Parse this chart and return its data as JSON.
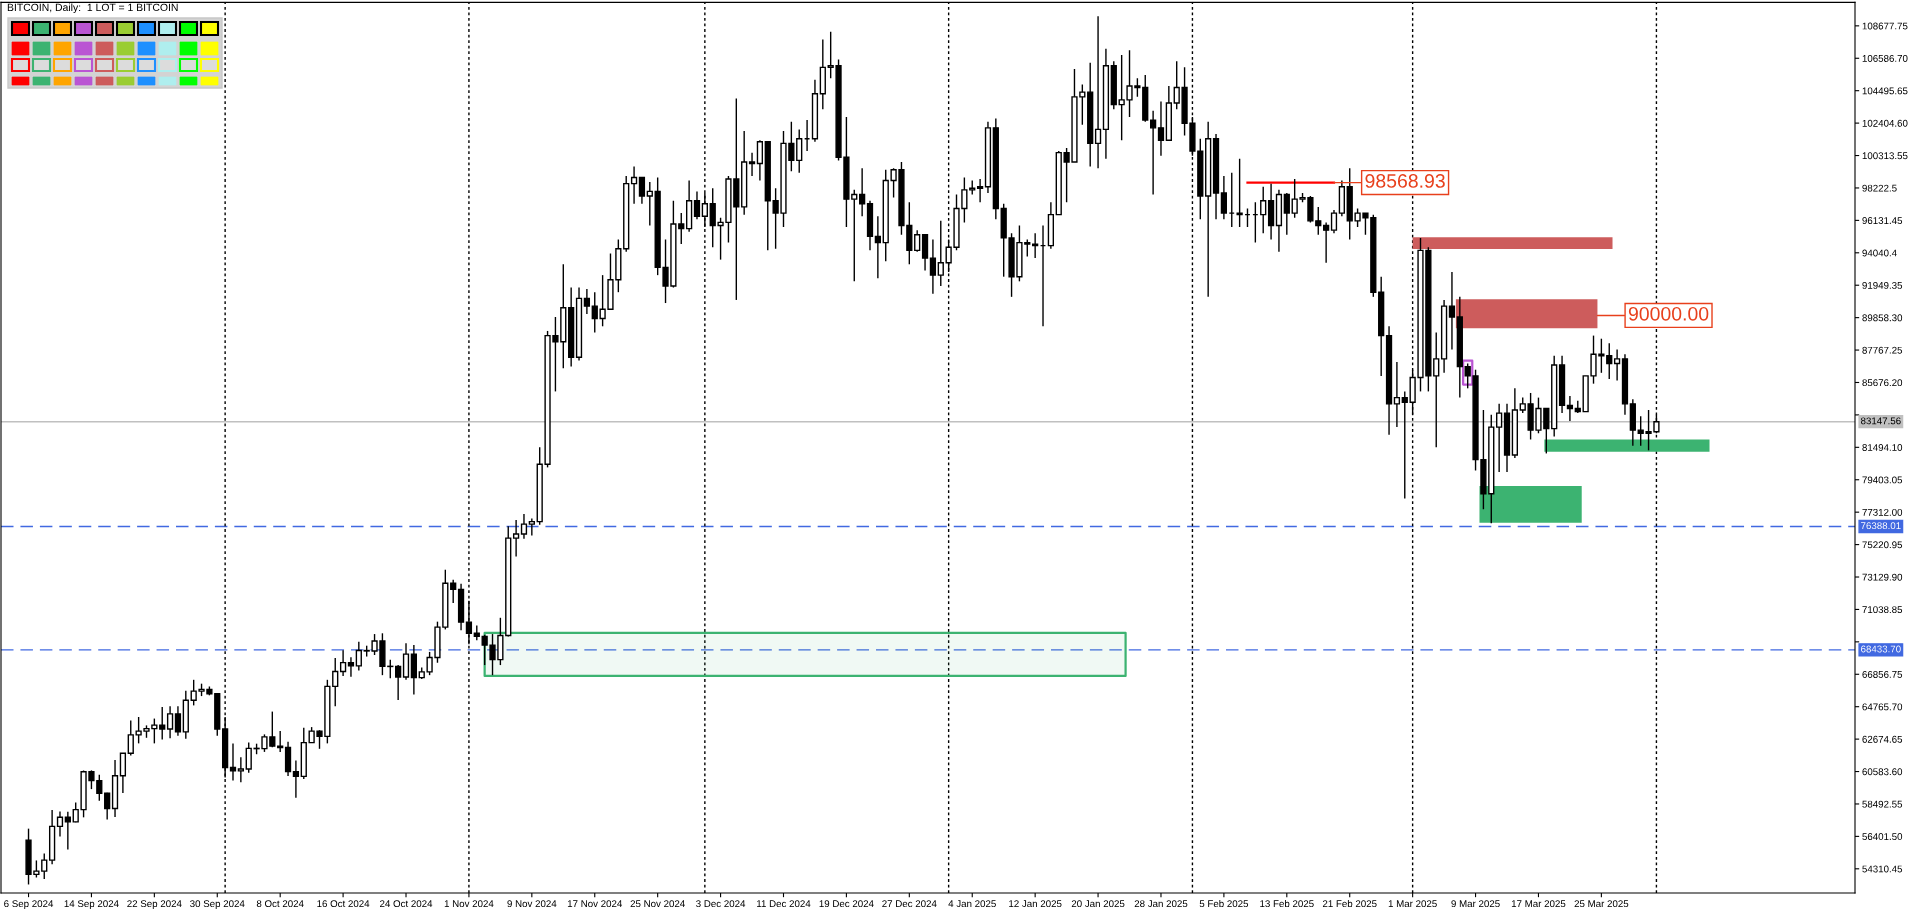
{
  "chart_data": {
    "type": "candlestick",
    "title": "BITCOIN, Daily:  1 LOT = 1 BITCOIN",
    "color": "#000000",
    "x": [
      "2024-09-06",
      "2024-09-07",
      "2024-09-08",
      "2024-09-09",
      "2024-09-10",
      "2024-09-11",
      "2024-09-12",
      "2024-09-13",
      "2024-09-14",
      "2024-09-15",
      "2024-09-16",
      "2024-09-17",
      "2024-09-18",
      "2024-09-19",
      "2024-09-20",
      "2024-09-21",
      "2024-09-22",
      "2024-09-23",
      "2024-09-24",
      "2024-09-25",
      "2024-09-26",
      "2024-09-27",
      "2024-09-28",
      "2024-09-29",
      "2024-09-30",
      "2024-10-01",
      "2024-10-02",
      "2024-10-03",
      "2024-10-04",
      "2024-10-05",
      "2024-10-06",
      "2024-10-07",
      "2024-10-08",
      "2024-10-09",
      "2024-10-10",
      "2024-10-11",
      "2024-10-12",
      "2024-10-13",
      "2024-10-14",
      "2024-10-15",
      "2024-10-16",
      "2024-10-17",
      "2024-10-18",
      "2024-10-19",
      "2024-10-20",
      "2024-10-21",
      "2024-10-22",
      "2024-10-23",
      "2024-10-24",
      "2024-10-25",
      "2024-10-26",
      "2024-10-27",
      "2024-10-28",
      "2024-10-29",
      "2024-10-30",
      "2024-10-31",
      "2024-11-01",
      "2024-11-02",
      "2024-11-03",
      "2024-11-04",
      "2024-11-05",
      "2024-11-06",
      "2024-11-07",
      "2024-11-08",
      "2024-11-09",
      "2024-11-10",
      "2024-11-11",
      "2024-11-12",
      "2024-11-13",
      "2024-11-14",
      "2024-11-15",
      "2024-11-16",
      "2024-11-17",
      "2024-11-18",
      "2024-11-19",
      "2024-11-20",
      "2024-11-21",
      "2024-11-22",
      "2024-11-23",
      "2024-11-24",
      "2024-11-25",
      "2024-11-26",
      "2024-11-27",
      "2024-11-28",
      "2024-11-29",
      "2024-11-30",
      "2024-12-01",
      "2024-12-02",
      "2024-12-03",
      "2024-12-04",
      "2024-12-05",
      "2024-12-06",
      "2024-12-07",
      "2024-12-08",
      "2024-12-09",
      "2024-12-10",
      "2024-12-11",
      "2024-12-12",
      "2024-12-13",
      "2024-12-14",
      "2024-12-15",
      "2024-12-16",
      "2024-12-17",
      "2024-12-18",
      "2024-12-19",
      "2024-12-20",
      "2024-12-21",
      "2024-12-22",
      "2024-12-23",
      "2024-12-24",
      "2024-12-25",
      "2024-12-26",
      "2024-12-27",
      "2024-12-28",
      "2024-12-29",
      "2024-12-30",
      "2024-12-31",
      "2025-01-01",
      "2025-01-02",
      "2025-01-03",
      "2025-01-04",
      "2025-01-05",
      "2025-01-06",
      "2025-01-07",
      "2025-01-08",
      "2025-01-09",
      "2025-01-10",
      "2025-01-11",
      "2025-01-12",
      "2025-01-13",
      "2025-01-14",
      "2025-01-15",
      "2025-01-16",
      "2025-01-17",
      "2025-01-18",
      "2025-01-19",
      "2025-01-20",
      "2025-01-21",
      "2025-01-22",
      "2025-01-23",
      "2025-01-24",
      "2025-01-25",
      "2025-01-26",
      "2025-01-27",
      "2025-01-28",
      "2025-01-29",
      "2025-01-30",
      "2025-01-31",
      "2025-02-01",
      "2025-02-02",
      "2025-02-03",
      "2025-02-04",
      "2025-02-05",
      "2025-02-06",
      "2025-02-07",
      "2025-02-08",
      "2025-02-09",
      "2025-02-10",
      "2025-02-11",
      "2025-02-12",
      "2025-02-13",
      "2025-02-14",
      "2025-02-15",
      "2025-02-16",
      "2025-02-17",
      "2025-02-18",
      "2025-02-19",
      "2025-02-20",
      "2025-02-21",
      "2025-02-22",
      "2025-02-23",
      "2025-02-24",
      "2025-02-25",
      "2025-02-26",
      "2025-02-27",
      "2025-02-28",
      "2025-03-01",
      "2025-03-02",
      "2025-03-03",
      "2025-03-04",
      "2025-03-05",
      "2025-03-06",
      "2025-03-07",
      "2025-03-08",
      "2025-03-09",
      "2025-03-10",
      "2025-03-11",
      "2025-03-12",
      "2025-03-13",
      "2025-03-14",
      "2025-03-15",
      "2025-03-16",
      "2025-03-17",
      "2025-03-18",
      "2025-03-19",
      "2025-03-20",
      "2025-03-21",
      "2025-03-22",
      "2025-03-23",
      "2025-03-24",
      "2025-03-25",
      "2025-03-26",
      "2025-03-27",
      "2025-03-28",
      "2025-03-29",
      "2025-03-30",
      "2025-03-31",
      "2025-04-01"
    ],
    "ohlc": [
      [
        56160,
        56900,
        53300,
        53950
      ],
      [
        53950,
        54850,
        53750,
        54160
      ],
      [
        54160,
        55300,
        53650,
        54870
      ],
      [
        54870,
        58100,
        54600,
        57050
      ],
      [
        57050,
        58000,
        56400,
        57640
      ],
      [
        57640,
        57990,
        55550,
        57340
      ],
      [
        57340,
        58580,
        57320,
        58130
      ],
      [
        58130,
        60650,
        57630,
        60570
      ],
      [
        60570,
        60660,
        59450,
        60000
      ],
      [
        60000,
        60380,
        58700,
        59180
      ],
      [
        59180,
        59210,
        57490,
        58200
      ],
      [
        58200,
        61330,
        57650,
        60310
      ],
      [
        60310,
        61770,
        59200,
        61760
      ],
      [
        61760,
        63870,
        61620,
        62950
      ],
      [
        62950,
        64100,
        62400,
        63190
      ],
      [
        63190,
        63560,
        62760,
        63350
      ],
      [
        63350,
        64000,
        62400,
        63580
      ],
      [
        63580,
        64750,
        62650,
        63330
      ],
      [
        63330,
        64800,
        62730,
        64300
      ],
      [
        64300,
        64800,
        62900,
        63140
      ],
      [
        63140,
        65800,
        62700,
        65180
      ],
      [
        65180,
        66500,
        64850,
        65770
      ],
      [
        65770,
        66250,
        65450,
        65880
      ],
      [
        65880,
        66070,
        65500,
        65600
      ],
      [
        65600,
        65600,
        62900,
        63330
      ],
      [
        63330,
        64100,
        60200,
        60840
      ],
      [
        60840,
        62400,
        60000,
        60630
      ],
      [
        60630,
        61500,
        59900,
        60750
      ],
      [
        60750,
        62450,
        60500,
        62080
      ],
      [
        62080,
        62380,
        61700,
        62060
      ],
      [
        62060,
        62980,
        61850,
        62820
      ],
      [
        62820,
        64450,
        62150,
        62220
      ],
      [
        62220,
        63200,
        61850,
        62130
      ],
      [
        62130,
        62500,
        60300,
        60580
      ],
      [
        60580,
        61300,
        58900,
        60270
      ],
      [
        60270,
        63400,
        60100,
        62450
      ],
      [
        62450,
        63450,
        62450,
        63190
      ],
      [
        63190,
        63250,
        62050,
        62850
      ],
      [
        62850,
        66500,
        62400,
        66080
      ],
      [
        66080,
        67900,
        64800,
        67040
      ],
      [
        67040,
        68400,
        66750,
        67610
      ],
      [
        67610,
        67950,
        66700,
        67400
      ],
      [
        67400,
        68950,
        67100,
        68390
      ],
      [
        68390,
        68700,
        68000,
        68360
      ],
      [
        68360,
        69450,
        68100,
        69000
      ],
      [
        69000,
        69500,
        66800,
        67370
      ],
      [
        67370,
        67800,
        66600,
        67360
      ],
      [
        67360,
        67450,
        65200,
        66680
      ],
      [
        66680,
        68850,
        66500,
        68160
      ],
      [
        68160,
        68750,
        65550,
        66640
      ],
      [
        66640,
        67300,
        66550,
        67010
      ],
      [
        67010,
        68300,
        66800,
        67940
      ],
      [
        67940,
        70250,
        67600,
        69900
      ],
      [
        69900,
        73600,
        69750,
        72730
      ],
      [
        72730,
        72950,
        71450,
        72330
      ],
      [
        72330,
        72700,
        69700,
        70220
      ],
      [
        70220,
        71600,
        68800,
        69500
      ],
      [
        69500,
        70000,
        69050,
        69300
      ],
      [
        69300,
        69400,
        67450,
        68740
      ],
      [
        68740,
        69450,
        66800,
        67800
      ],
      [
        67800,
        70500,
        67450,
        69360
      ],
      [
        69360,
        76400,
        69300,
        75640
      ],
      [
        75640,
        76800,
        74450,
        75900
      ],
      [
        75900,
        77200,
        75600,
        76540
      ],
      [
        76540,
        76900,
        75800,
        76700
      ],
      [
        76700,
        81500,
        76500,
        80400
      ],
      [
        80400,
        89000,
        80200,
        88700
      ],
      [
        88700,
        89900,
        85100,
        88300
      ],
      [
        88300,
        93300,
        86600,
        90500
      ],
      [
        90500,
        91800,
        86700,
        87300
      ],
      [
        87300,
        91800,
        87100,
        91100
      ],
      [
        91100,
        91700,
        90100,
        90600
      ],
      [
        90600,
        91500,
        88900,
        89800
      ],
      [
        89800,
        92600,
        89300,
        90400
      ],
      [
        90400,
        94000,
        90400,
        92300
      ],
      [
        92300,
        94900,
        91500,
        94300
      ],
      [
        94300,
        99000,
        94100,
        98500
      ],
      [
        98500,
        99600,
        97200,
        98900
      ],
      [
        98900,
        98900,
        97200,
        97700
      ],
      [
        97700,
        98600,
        95800,
        98000
      ],
      [
        98000,
        98900,
        92600,
        93100
      ],
      [
        93100,
        94900,
        90800,
        91900
      ],
      [
        91900,
        97400,
        91800,
        95900
      ],
      [
        95900,
        96600,
        94600,
        95600
      ],
      [
        95600,
        98700,
        95400,
        97400
      ],
      [
        97400,
        98000,
        96200,
        96400
      ],
      [
        96400,
        97900,
        95700,
        97200
      ],
      [
        97200,
        98200,
        94400,
        95800
      ],
      [
        95800,
        96300,
        93600,
        96000
      ],
      [
        96000,
        99000,
        94700,
        98800
      ],
      [
        98800,
        104000,
        91000,
        97000
      ],
      [
        97000,
        101900,
        96500,
        99900
      ],
      [
        99900,
        100500,
        99000,
        99800
      ],
      [
        99800,
        101300,
        98700,
        101200
      ],
      [
        101200,
        101200,
        94200,
        97400
      ],
      [
        97400,
        98200,
        94300,
        96600
      ],
      [
        96600,
        101900,
        95700,
        101100
      ],
      [
        101100,
        102500,
        99300,
        100000
      ],
      [
        100000,
        102000,
        99200,
        101400
      ],
      [
        101400,
        102600,
        100600,
        101400
      ],
      [
        101400,
        105200,
        101200,
        104300
      ],
      [
        104300,
        107800,
        103300,
        106000
      ],
      [
        106000,
        108300,
        105300,
        106100
      ],
      [
        106100,
        106500,
        100000,
        100200
      ],
      [
        100200,
        102800,
        95700,
        97500
      ],
      [
        97500,
        98100,
        92200,
        97800
      ],
      [
        97800,
        99500,
        96400,
        97200
      ],
      [
        97200,
        97400,
        94200,
        95100
      ],
      [
        95100,
        96400,
        92400,
        94700
      ],
      [
        94700,
        99400,
        93500,
        98700
      ],
      [
        98700,
        99500,
        97600,
        99400
      ],
      [
        99400,
        99900,
        95200,
        95800
      ],
      [
        95800,
        97300,
        93300,
        94200
      ],
      [
        94200,
        95500,
        94100,
        95200
      ],
      [
        95200,
        95200,
        92900,
        93700
      ],
      [
        93700,
        94900,
        91400,
        92600
      ],
      [
        92600,
        96100,
        91900,
        93400
      ],
      [
        93400,
        94900,
        92800,
        94400
      ],
      [
        94400,
        97800,
        94200,
        96900
      ],
      [
        96900,
        98900,
        96000,
        98100
      ],
      [
        98100,
        98700,
        97800,
        98200
      ],
      [
        98200,
        98800,
        97300,
        98300
      ],
      [
        98300,
        102500,
        97900,
        102100
      ],
      [
        102100,
        102700,
        96200,
        96900
      ],
      [
        96900,
        97200,
        92500,
        95000
      ],
      [
        95000,
        95300,
        91200,
        92500
      ],
      [
        92500,
        95800,
        92200,
        94700
      ],
      [
        94700,
        94900,
        93800,
        94600
      ],
      [
        94600,
        95300,
        93700,
        94500
      ],
      [
        94500,
        95800,
        89300,
        94500
      ],
      [
        94500,
        97300,
        94300,
        96500
      ],
      [
        96500,
        100600,
        96500,
        100500
      ],
      [
        100500,
        100800,
        97300,
        99900
      ],
      [
        99900,
        105900,
        99900,
        104100
      ],
      [
        104100,
        104900,
        102300,
        104400
      ],
      [
        104400,
        106300,
        99600,
        101100
      ],
      [
        101100,
        109300,
        99500,
        102000
      ],
      [
        102000,
        107200,
        100100,
        106100
      ],
      [
        106100,
        106400,
        103300,
        103600
      ],
      [
        103600,
        106800,
        101300,
        103900
      ],
      [
        103900,
        107100,
        102800,
        104800
      ],
      [
        104800,
        105300,
        104100,
        104700
      ],
      [
        104700,
        105500,
        102500,
        102600
      ],
      [
        102600,
        103200,
        97800,
        102100
      ],
      [
        102100,
        103800,
        100300,
        101300
      ],
      [
        101300,
        104800,
        101300,
        103700
      ],
      [
        103700,
        106400,
        103300,
        104700
      ],
      [
        104700,
        106000,
        101600,
        102400
      ],
      [
        102400,
        102800,
        100300,
        100600
      ],
      [
        100600,
        101400,
        96200,
        97700
      ],
      [
        97700,
        102500,
        91200,
        101400
      ],
      [
        101400,
        101700,
        96200,
        97900
      ],
      [
        97900,
        99000,
        96200,
        96600
      ],
      [
        96600,
        99200,
        95700,
        96600
      ],
      [
        96600,
        100100,
        95700,
        96500
      ],
      [
        96500,
        96900,
        95700,
        96500
      ],
      [
        96500,
        97300,
        94700,
        96500
      ],
      [
        96500,
        98300,
        95300,
        97400
      ],
      [
        97400,
        98500,
        94900,
        95800
      ],
      [
        95800,
        98100,
        94100,
        97800
      ],
      [
        97800,
        97900,
        95200,
        96600
      ],
      [
        96600,
        98800,
        96300,
        97500
      ],
      [
        97500,
        97900,
        97300,
        97600
      ],
      [
        97600,
        97700,
        96000,
        96100
      ],
      [
        96100,
        97000,
        95200,
        95800
      ],
      [
        95800,
        96000,
        93400,
        95500
      ],
      [
        95500,
        96800,
        95300,
        96600
      ],
      [
        96600,
        98700,
        96400,
        98300
      ],
      [
        98300,
        99500,
        94900,
        96100
      ],
      [
        96100,
        96900,
        95700,
        96600
      ],
      [
        96600,
        96600,
        95200,
        96300
      ],
      [
        96300,
        96500,
        91200,
        91500
      ],
      [
        91500,
        92500,
        86100,
        88700
      ],
      [
        88700,
        89300,
        82300,
        84300
      ],
      [
        84300,
        87000,
        82800,
        84700
      ],
      [
        84700,
        85100,
        78200,
        84400
      ],
      [
        84400,
        86500,
        83600,
        86000
      ],
      [
        86000,
        95000,
        85100,
        94200
      ],
      [
        94200,
        94400,
        85100,
        86100
      ],
      [
        86100,
        88900,
        81500,
        87200
      ],
      [
        87200,
        91000,
        86300,
        90600
      ],
      [
        90600,
        92800,
        87800,
        89900
      ],
      [
        89900,
        91200,
        84700,
        86700
      ],
      [
        86700,
        86900,
        85300,
        86100
      ],
      [
        86100,
        86500,
        80000,
        80700
      ],
      [
        80700,
        83900,
        77500,
        78500
      ],
      [
        78500,
        83600,
        76600,
        82800
      ],
      [
        82800,
        84300,
        79900,
        83700
      ],
      [
        83700,
        84300,
        79900,
        81000
      ],
      [
        81000,
        85300,
        80800,
        83900
      ],
      [
        83900,
        84700,
        83700,
        84300
      ],
      [
        84300,
        85000,
        82000,
        82600
      ],
      [
        82600,
        84700,
        82400,
        84000
      ],
      [
        84000,
        84000,
        81100,
        82700
      ],
      [
        82700,
        87400,
        82200,
        86800
      ],
      [
        86800,
        87400,
        83700,
        84200
      ],
      [
        84200,
        84800,
        83200,
        84000
      ],
      [
        84000,
        84500,
        83700,
        83800
      ],
      [
        83800,
        86100,
        83800,
        86100
      ],
      [
        86100,
        88700,
        85600,
        87500
      ],
      [
        87500,
        88500,
        86300,
        87400
      ],
      [
        87400,
        88200,
        85900,
        86900
      ],
      [
        86900,
        87800,
        85800,
        87200
      ],
      [
        87200,
        87500,
        83600,
        84300
      ],
      [
        84300,
        84600,
        81600,
        82600
      ],
      [
        82600,
        83500,
        81600,
        82400
      ],
      [
        82400,
        83900,
        81300,
        82500
      ],
      [
        82500,
        83600,
        82400,
        83147.56
      ]
    ],
    "xlim": [
      "2024-09-02T12:00",
      "2025-04-26T06:00"
    ],
    "xticks": [
      {
        "value": "2024-09-06",
        "label": "6 Sep 2024"
      },
      {
        "value": "2024-09-14",
        "label": "14 Sep 2024"
      },
      {
        "value": "2024-09-22",
        "label": "22 Sep 2024"
      },
      {
        "value": "2024-09-30",
        "label": "30 Sep 2024"
      },
      {
        "value": "2024-10-08",
        "label": "8 Oct 2024"
      },
      {
        "value": "2024-10-16",
        "label": "16 Oct 2024"
      },
      {
        "value": "2024-10-24",
        "label": "24 Oct 2024"
      },
      {
        "value": "2024-11-01",
        "label": "1 Nov 2024"
      },
      {
        "value": "2024-11-09",
        "label": "9 Nov 2024"
      },
      {
        "value": "2024-11-17",
        "label": "17 Nov 2024"
      },
      {
        "value": "2024-11-25",
        "label": "25 Nov 2024"
      },
      {
        "value": "2024-12-03",
        "label": "3 Dec 2024"
      },
      {
        "value": "2024-12-11",
        "label": "11 Dec 2024"
      },
      {
        "value": "2024-12-19",
        "label": "19 Dec 2024"
      },
      {
        "value": "2024-12-27",
        "label": "27 Dec 2024"
      },
      {
        "value": "2025-01-04",
        "label": "4 Jan 2025"
      },
      {
        "value": "2025-01-12",
        "label": "12 Jan 2025"
      },
      {
        "value": "2025-01-20",
        "label": "20 Jan 2025"
      },
      {
        "value": "2025-01-28",
        "label": "28 Jan 2025"
      },
      {
        "value": "2025-02-05",
        "label": "5 Feb 2025"
      },
      {
        "value": "2025-02-13",
        "label": "13 Feb 2025"
      },
      {
        "value": "2025-02-21",
        "label": "21 Feb 2025"
      },
      {
        "value": "2025-03-01",
        "label": "1 Mar 2025"
      },
      {
        "value": "2025-03-09",
        "label": "9 Mar 2025"
      },
      {
        "value": "2025-03-17",
        "label": "17 Mar 2025"
      },
      {
        "value": "2025-03-25",
        "label": "25 Mar 2025"
      }
    ],
    "ylim": [
      52750,
      110190
    ],
    "yticks": [
      54310.45,
      {
        "value": 56401.5,
        "label": "56401.50"
      },
      58492.55,
      {
        "value": 60583.6,
        "label": "60583.60"
      },
      62674.65,
      {
        "value": 64765.7,
        "label": "64765.70"
      },
      66856.75,
      {
        "value": 68947.8,
        "label": null
      },
      71038.85,
      {
        "value": 73129.9,
        "label": "73129.90"
      },
      75220.95,
      {
        "value": 77312,
        "label": "77312.00"
      },
      79403.05,
      {
        "value": 81494.1,
        "label": "81494.10"
      },
      {
        "value": 83585.15,
        "label": null
      },
      {
        "value": 85676.2,
        "label": "85676.20"
      },
      87767.25,
      {
        "value": 89858.3,
        "label": "89858.30"
      },
      91949.35,
      94040.4,
      96131.45,
      98222.5,
      100313.55,
      {
        "value": 102404.6,
        "label": "102404.60"
      },
      104495.65,
      {
        "value": 106586.7,
        "label": "106586.70"
      },
      108677.75
    ],
    "ref_lines": [
      {
        "axis": "y",
        "value": 83147.56,
        "label": "83147.56",
        "color": "#c0c0c0",
        "line_style": "solid"
      },
      {
        "axis": "y",
        "value": 76388.01,
        "label": "76388.01",
        "color": "#4169e1",
        "line_style": "dashed"
      },
      {
        "axis": "y",
        "value": 68433.7,
        "label": "68433.70",
        "color": "#4169e1",
        "line_style": "dashed"
      },
      {
        "axis": "x",
        "value": "2024-10-01",
        "color": "#000000",
        "line_style": "dotted"
      },
      {
        "axis": "x",
        "value": "2024-11-01",
        "color": "#000000",
        "line_style": "dotted"
      },
      {
        "axis": "x",
        "value": "2024-12-01",
        "color": "#000000",
        "line_style": "dotted"
      },
      {
        "axis": "x",
        "value": "2025-01-01",
        "color": "#000000",
        "line_style": "dotted"
      },
      {
        "axis": "x",
        "value": "2025-02-01",
        "color": "#000000",
        "line_style": "dotted"
      },
      {
        "axis": "x",
        "value": "2025-03-01",
        "color": "#000000",
        "line_style": "dotted"
      },
      {
        "axis": "x",
        "value": "2025-04-01",
        "color": "#000000",
        "line_style": "dotted"
      }
    ],
    "series": [
      {
        "type": "area",
        "color": "#cd5c5c",
        "x": [
          "2025-03-01",
          "2025-03-26T10:00"
        ],
        "values": [
          null,
          null
        ],
        "upper": [
          95050,
          95050
        ],
        "lower": [
          94280,
          94280
        ]
      },
      {
        "type": "area",
        "color": "#cd5c5c",
        "x": [
          "2025-03-06T12:00",
          "2025-03-24T12:00"
        ],
        "values": [
          null,
          null
        ],
        "upper": [
          91050,
          91050
        ],
        "lower": [
          89180,
          89180
        ]
      },
      {
        "type": "area",
        "color": "#3cb371",
        "x": [
          "2025-03-09T12:00",
          "2025-03-22T12:00"
        ],
        "values": [
          null,
          null
        ],
        "upper": [
          79000,
          79000
        ],
        "lower": [
          76630,
          76630
        ]
      },
      {
        "type": "area",
        "color": "#3cb371",
        "x": [
          "2025-03-17T18:00",
          "2025-04-07T18:00"
        ],
        "values": [
          null,
          null
        ],
        "upper": [
          82000,
          82000
        ],
        "lower": [
          81210,
          81210
        ]
      },
      {
        "type": "area",
        "color": "#3cb371",
        "line_style": "solid",
        "x": [
          "2024-11-03",
          "2025-01-23T12:00"
        ],
        "values": [
          null,
          null
        ],
        "upper": [
          69520,
          69520
        ],
        "lower": [
          66750,
          66750
        ]
      },
      {
        "type": "area",
        "color": "#ba55d3",
        "line_style": "solid",
        "x": [
          "2025-03-07T10:00",
          "2025-03-08T14:00"
        ],
        "values": [
          null,
          null
        ],
        "upper": [
          87080,
          87080
        ],
        "lower": [
          85540,
          85540
        ]
      },
      {
        "type": "line",
        "color": "#ff0000",
        "x": [
          "2025-02-08",
          "2025-02-19"
        ],
        "values": [
          98568.93,
          98568.93
        ]
      }
    ],
    "annotations": [
      {
        "text": "98568.93",
        "x": "2025-02-19",
        "y": 98568.93
      },
      {
        "text": "90000.00",
        "x": "2025-03-24T12:00",
        "y": 90000
      }
    ]
  }
}
